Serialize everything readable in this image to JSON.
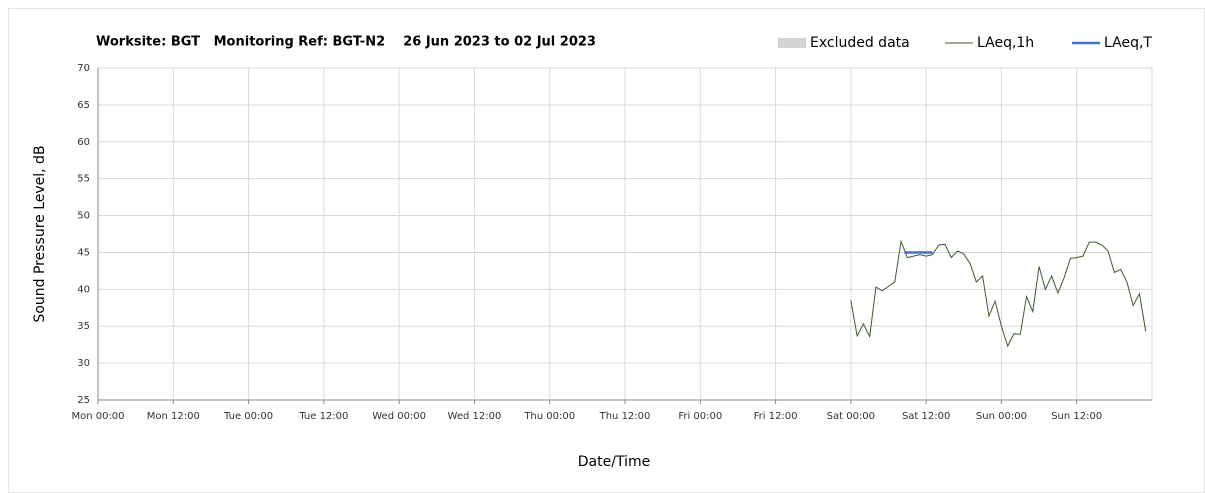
{
  "chart_data": {
    "type": "line",
    "title": "Worksite: BGT   Monitoring Ref: BGT-N2    26 Jun 2023 to 02 Jul 2023",
    "x_label": "Date/Time",
    "y_label": "Sound Pressure Level, dB",
    "xlim": [
      0,
      168
    ],
    "xticks": [
      {
        "value": 0,
        "label": "Mon 00:00"
      },
      {
        "value": 12,
        "label": "Mon 12:00"
      },
      {
        "value": 24,
        "label": "Tue 00:00"
      },
      {
        "value": 36,
        "label": "Tue 12:00"
      },
      {
        "value": 48,
        "label": "Wed 00:00"
      },
      {
        "value": 60,
        "label": "Wed 12:00"
      },
      {
        "value": 72,
        "label": "Thu 00:00"
      },
      {
        "value": 84,
        "label": "Thu 12:00"
      },
      {
        "value": 96,
        "label": "Fri 00:00"
      },
      {
        "value": 108,
        "label": "Fri 12:00"
      },
      {
        "value": 120,
        "label": "Sat 00:00"
      },
      {
        "value": 132,
        "label": "Sat 12:00"
      },
      {
        "value": 144,
        "label": "Sun 00:00"
      },
      {
        "value": 156,
        "label": "Sun 12:00"
      }
    ],
    "ylim": [
      25,
      70
    ],
    "yticks": [
      25,
      30,
      35,
      40,
      45,
      50,
      55,
      60,
      65,
      70
    ],
    "grid": true,
    "series": [
      {
        "name": "Excluded data",
        "color": "#d4d4d4",
        "style": "box",
        "x": [],
        "values": []
      },
      {
        "name": "LAeq,1h",
        "color": "#3d5a2a",
        "style": "thin",
        "x": [
          120,
          121,
          122,
          123,
          124,
          125,
          126,
          127,
          128,
          129,
          130,
          131,
          132,
          133,
          134,
          135,
          136,
          137,
          138,
          139,
          140,
          141,
          142,
          143,
          144,
          145,
          146,
          147,
          148,
          149,
          150,
          151,
          152,
          153,
          154,
          155,
          156,
          157,
          158,
          159,
          160,
          161,
          162,
          163,
          164,
          165,
          166,
          167
        ],
        "values": [
          38.5,
          33.7,
          35.3,
          33.6,
          40.3,
          39.8,
          40.4,
          41,
          46.5,
          44.3,
          44.5,
          44.7,
          44.5,
          44.7,
          46,
          46.1,
          44.3,
          45.2,
          44.8,
          43.5,
          41,
          41.8,
          36.4,
          38.4,
          35,
          32.3,
          34,
          33.9,
          39,
          37,
          43.1,
          40,
          41.8,
          39.5,
          41.6,
          44.2,
          44.3,
          44.5,
          46.4,
          46.4,
          46,
          45.2,
          42.3,
          42.7,
          41,
          37.8,
          39.4,
          34.3
        ]
      },
      {
        "name": "LAeq,T",
        "color": "#4472c4",
        "style": "thick",
        "x": [
          128.5,
          133
        ],
        "values": [
          45,
          45
        ]
      }
    ]
  }
}
